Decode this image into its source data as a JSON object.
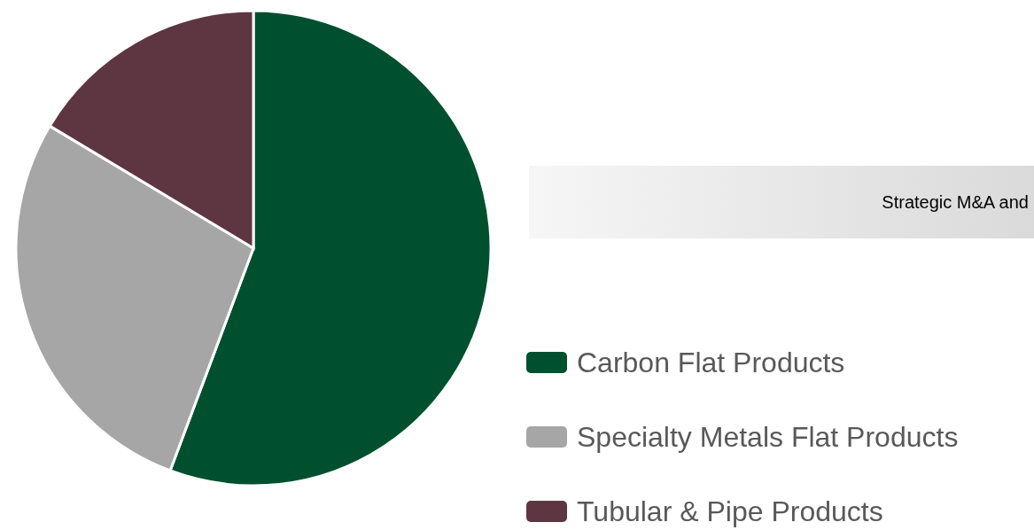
{
  "chart_data": {
    "type": "pie",
    "categories": [
      "Carbon Flat Products",
      "Specialty Metals Flat Products",
      "Tubular & Pipe Products"
    ],
    "values": [
      55.7,
      27.9,
      16.4
    ],
    "colors": [
      "#005030",
      "#a6a6a6",
      "#5e3641"
    ],
    "legend": "right",
    "annotations": [
      "Strategic M&A and"
    ]
  }
}
